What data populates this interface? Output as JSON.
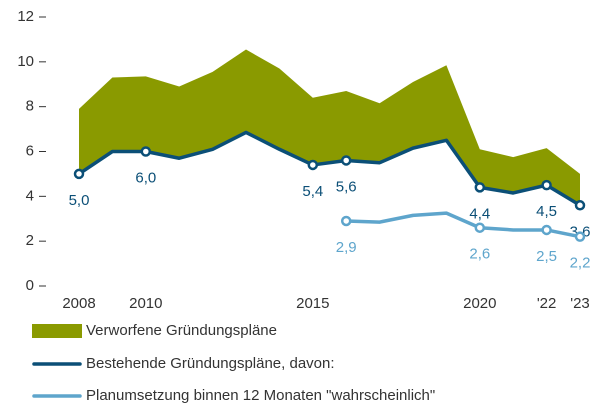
{
  "chart_data": {
    "type": "line",
    "x": [
      2008,
      2009,
      2010,
      2011,
      2012,
      2013,
      2014,
      2015,
      2016,
      2017,
      2018,
      2019,
      2020,
      2021,
      2022,
      2023
    ],
    "xlim": [
      2008,
      2023
    ],
    "xticks": [
      2008,
      2010,
      2015,
      2020,
      {
        "value": 2022,
        "label": "'22"
      },
      {
        "value": 2023,
        "label": "'23"
      }
    ],
    "ylim": [
      0,
      12
    ],
    "yticks": [
      0,
      2,
      4,
      6,
      8,
      10,
      12
    ],
    "series": [
      {
        "name": "Verworfene Gründungspläne",
        "color": "#8a9a00",
        "kind": "stacked-area",
        "values": [
          2.9,
          3.3,
          3.35,
          3.2,
          3.45,
          3.7,
          3.6,
          3.0,
          3.1,
          2.65,
          2.95,
          3.35,
          1.7,
          1.6,
          1.65,
          1.4
        ]
      },
      {
        "name": "Bestehende Gründungspläne, davon:",
        "color": "#0b4f77",
        "values": [
          5.0,
          6.0,
          6.0,
          5.7,
          6.1,
          6.85,
          6.1,
          5.4,
          5.6,
          5.5,
          6.15,
          6.5,
          4.4,
          4.15,
          4.5,
          3.6
        ],
        "value_labels": [
          "5,0",
          null,
          "6,0",
          null,
          null,
          null,
          null,
          "5,4",
          "5,6",
          null,
          null,
          null,
          "4,4",
          null,
          "4,5",
          "3,6"
        ]
      },
      {
        "name": "Planumsetzung binnen 12 Monaten \"wahrscheinlich\"",
        "color": "#5ea5cc",
        "values": [
          null,
          null,
          null,
          null,
          null,
          null,
          null,
          null,
          2.9,
          2.85,
          3.15,
          3.25,
          2.6,
          2.5,
          2.5,
          2.2
        ],
        "value_labels": [
          null,
          null,
          null,
          null,
          null,
          null,
          null,
          null,
          "2,9",
          null,
          null,
          null,
          "2,6",
          null,
          "2,5",
          "2,2"
        ]
      }
    ]
  }
}
